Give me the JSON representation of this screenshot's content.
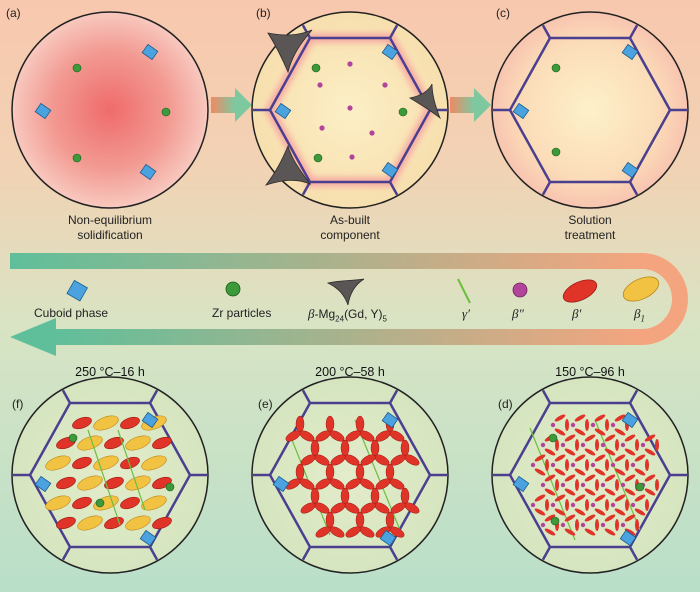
{
  "panels": {
    "a": {
      "tag": "(a)",
      "caption_line1": "Non-equilibrium",
      "caption_line2": "solidification"
    },
    "b": {
      "tag": "(b)",
      "caption_line1": "As-built",
      "caption_line2": "component"
    },
    "c": {
      "tag": "(c)",
      "caption_line1": "Solution",
      "caption_line2": "treatment"
    },
    "f": {
      "tag": "(f)",
      "condition": "250 °C–16 h"
    },
    "e": {
      "tag": "(e)",
      "condition": "200 °C–58 h"
    },
    "d": {
      "tag": "(d)",
      "condition": "150 °C–96 h"
    }
  },
  "legend": {
    "cuboid_phase": "Cuboid phase",
    "zr_particles": "Zr particles",
    "beta_prefix": "β",
    "beta_mg": "-Mg",
    "beta_sub": "24",
    "beta_gd": "(Gd, Y)",
    "beta_sub2": "5",
    "gamma_prime": "γ′",
    "beta_double_prime": "β″",
    "beta_prime": "β′",
    "beta1_base": "β",
    "beta1_sub": "1"
  },
  "colors": {
    "grain_boundary": "#4b3f8f",
    "cuboid_phase": "#4aa3df",
    "zr_particle": "#3d9a3a",
    "beta_double_prime": "#b3449c",
    "beta_prime": "#e03428",
    "beta1": "#f2c243",
    "gamma_prime": "#6cbf3e",
    "beta_phase": "#5a5655"
  }
}
